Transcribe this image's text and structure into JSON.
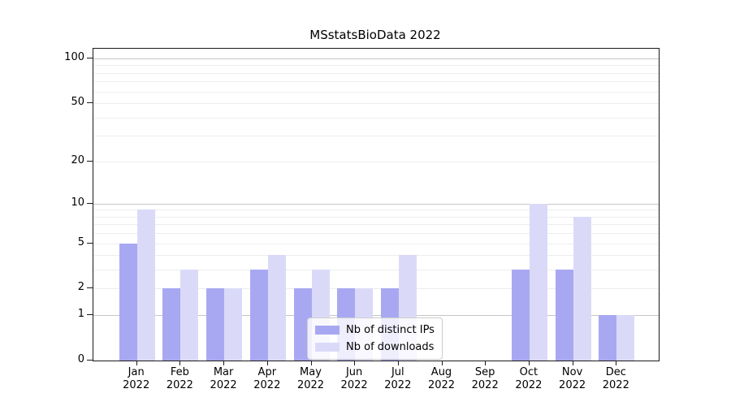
{
  "chart_data": {
    "type": "bar",
    "title": "MSstatsBioData 2022",
    "categories": [
      "Jan",
      "Feb",
      "Mar",
      "Apr",
      "May",
      "Jun",
      "Jul",
      "Aug",
      "Sep",
      "Oct",
      "Nov",
      "Dec"
    ],
    "year": "2022",
    "series": [
      {
        "name": "Nb of distinct IPs",
        "color": "#a8a8f2",
        "values": [
          5,
          2,
          2,
          3,
          2,
          2,
          2,
          0,
          0,
          3,
          3,
          1
        ]
      },
      {
        "name": "Nb of downloads",
        "color": "#dadaf8",
        "values": [
          9,
          3,
          2,
          4,
          3,
          2,
          4,
          0,
          0,
          10,
          8,
          1
        ]
      }
    ],
    "xlabel": "",
    "ylabel": "",
    "y_axis": {
      "scale": "log10(1+x)",
      "ylim": [
        0,
        100
      ],
      "ticks": [
        0,
        1,
        2,
        5,
        10,
        20,
        50,
        100
      ],
      "grid_major": [
        1,
        10,
        100
      ],
      "grid_minor": [
        2,
        3,
        4,
        5,
        6,
        7,
        8,
        9,
        20,
        30,
        40,
        50,
        60,
        70,
        80,
        90
      ]
    },
    "legend": {
      "position": "lower-center-inside"
    }
  }
}
